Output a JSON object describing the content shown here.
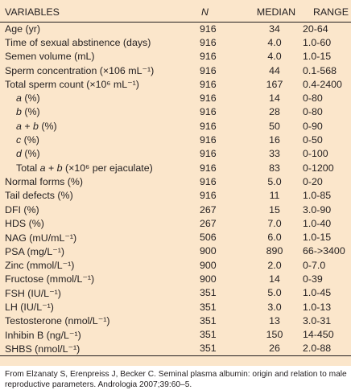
{
  "table": {
    "headers": {
      "variable": "VARIABLES",
      "n": "N",
      "median": "MEDIAN",
      "range": "RANGE"
    },
    "rows": [
      {
        "variable": "Age (yr)",
        "n": "916",
        "median": "34",
        "range": "20-64",
        "indent": false
      },
      {
        "variable": "Time of sexual abstinence (days)",
        "n": "916",
        "median": "4.0",
        "range": "1.0-60",
        "indent": false
      },
      {
        "variable": "Semen volume (mL)",
        "n": "916",
        "median": "4.0",
        "range": "1.0-15",
        "indent": false
      },
      {
        "variable": "Sperm concentration (×106 mL⁻¹)",
        "n": "916",
        "median": "44",
        "range": "0.1-568",
        "indent": false
      },
      {
        "variable": "Total sperm count (×10⁶ mL⁻¹)",
        "n": "916",
        "median": "167",
        "range": "0.4-2400",
        "indent": false
      },
      {
        "variable": "a (%)",
        "n": "916",
        "median": "14",
        "range": "0-80",
        "indent": true
      },
      {
        "variable": "b (%)",
        "n": "916",
        "median": "28",
        "range": "0-80",
        "indent": true
      },
      {
        "variable": "a + b (%)",
        "n": "916",
        "median": "50",
        "range": "0-90",
        "indent": true
      },
      {
        "variable": "c (%)",
        "n": "916",
        "median": "16",
        "range": "0-50",
        "indent": true
      },
      {
        "variable": "d (%)",
        "n": "916",
        "median": "33",
        "range": "0-100",
        "indent": true
      },
      {
        "variable": "Total a + b (×10⁶ per ejaculate)",
        "n": "916",
        "median": "83",
        "range": "0-1200",
        "indent": true
      },
      {
        "variable": "Normal forms (%)",
        "n": "916",
        "median": "5.0",
        "range": "0-20",
        "indent": false
      },
      {
        "variable": "Tail defects (%)",
        "n": "916",
        "median": "11",
        "range": "1.0-85",
        "indent": false
      },
      {
        "variable": "DFI (%)",
        "n": "267",
        "median": "15",
        "range": "3.0-90",
        "indent": false
      },
      {
        "variable": "HDS (%)",
        "n": "267",
        "median": "7.0",
        "range": "1.0-40",
        "indent": false
      },
      {
        "variable": "NAG (mU/mL⁻¹)",
        "n": "506",
        "median": "6.0",
        "range": "1.0-15",
        "indent": false
      },
      {
        "variable": "PSA (mg/L⁻¹)",
        "n": "900",
        "median": "890",
        "range": "66->3400",
        "indent": false
      },
      {
        "variable": "Zinc (mmol/L⁻¹)",
        "n": "900",
        "median": "2.0",
        "range": "0-7.0",
        "indent": false
      },
      {
        "variable": "Fructose (mmol/L⁻¹)",
        "n": "900",
        "median": "14",
        "range": "0-39",
        "indent": false
      },
      {
        "variable": "FSH (IU/L⁻¹)",
        "n": "351",
        "median": "5.0",
        "range": "1.0-45",
        "indent": false
      },
      {
        "variable": "LH (IU/L⁻¹)",
        "n": "351",
        "median": "3.0",
        "range": "1.0-13",
        "indent": false
      },
      {
        "variable": "Testosterone (nmol/L⁻¹)",
        "n": "351",
        "median": "13",
        "range": "3.0-31",
        "indent": false
      },
      {
        "variable": "Inhibin B (ng/L⁻¹)",
        "n": "351",
        "median": "150",
        "range": "14-450",
        "indent": false
      },
      {
        "variable": "SHBS (nmol/L⁻¹)",
        "n": "351",
        "median": "26",
        "range": "2.0-88",
        "indent": false
      }
    ]
  },
  "footnote": "From Elzanaty S, Erenpreiss J, Becker C. Seminal plasma albumin: origin and relation to male reproductive parameters. Andrologia 2007;39:60–5.",
  "colors": {
    "panel_background": "#fbe6cb",
    "text": "#231f20",
    "rules": "#231f20"
  }
}
